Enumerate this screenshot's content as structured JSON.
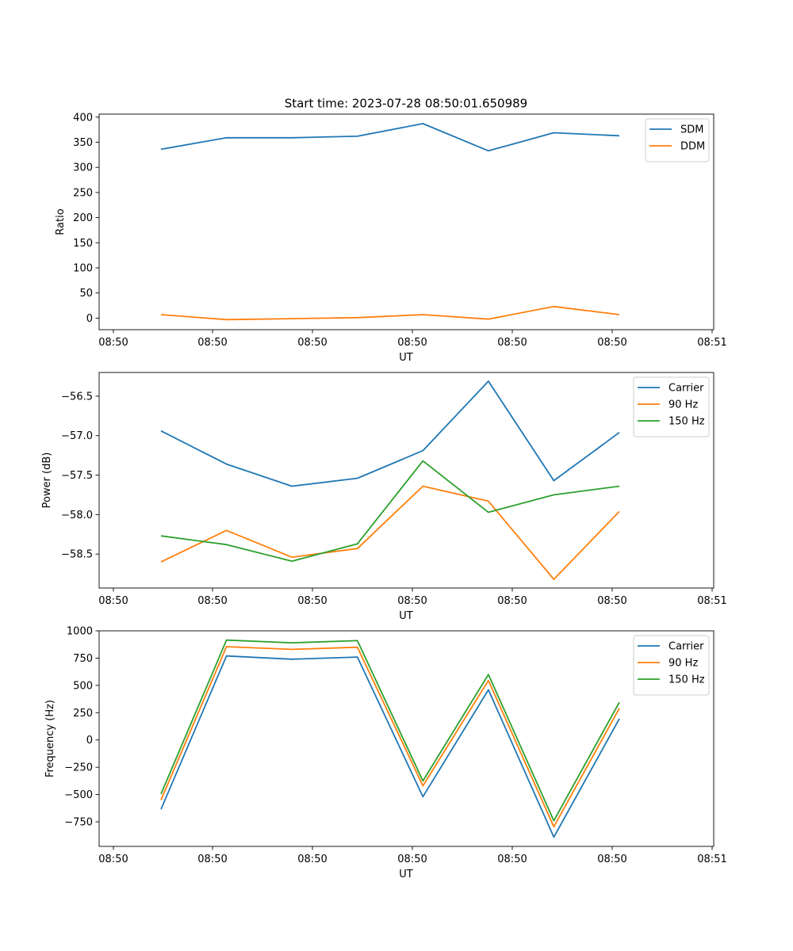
{
  "title": "Start time: 2023-07-28 08:50:01.650989",
  "chart_data": [
    {
      "type": "line",
      "xlabel": "UT",
      "ylabel": "Ratio",
      "x_tick_labels": [
        "08:50",
        "08:50",
        "08:50",
        "08:50",
        "08:50",
        "08:50",
        "08:51"
      ],
      "y_ticks": [
        0,
        50,
        100,
        150,
        200,
        250,
        300,
        350,
        400
      ],
      "y_tick_labels": [
        "0",
        "50",
        "100",
        "150",
        "200",
        "250",
        "300",
        "350",
        "400"
      ],
      "ylim": [
        -23,
        406
      ],
      "legend": "top-right",
      "x_index": [
        1,
        2,
        3,
        4,
        5,
        6,
        7,
        8
      ],
      "series": [
        {
          "name": "SDM",
          "color": "#1f77b4",
          "values": [
            336,
            359,
            359,
            362,
            387,
            333,
            369,
            363
          ]
        },
        {
          "name": "DDM",
          "color": "#ff7f0e",
          "values": [
            7,
            -3,
            -1,
            1,
            7,
            -2,
            23,
            7
          ]
        }
      ]
    },
    {
      "type": "line",
      "xlabel": "UT",
      "ylabel": "Power (dB)",
      "x_tick_labels": [
        "08:50",
        "08:50",
        "08:50",
        "08:50",
        "08:50",
        "08:50",
        "08:51"
      ],
      "y_ticks": [
        -58.5,
        -58.0,
        -57.5,
        -57.0,
        -56.5
      ],
      "y_tick_labels": [
        "−58.5",
        "−58.0",
        "−57.5",
        "−57.0",
        "−56.5"
      ],
      "ylim": [
        -58.93,
        -56.2
      ],
      "legend": "top-right",
      "x_index": [
        1,
        2,
        3,
        4,
        5,
        6,
        7,
        8
      ],
      "series": [
        {
          "name": "Carrier",
          "color": "#1f77b4",
          "values": [
            -56.94,
            -57.36,
            -57.64,
            -57.54,
            -57.19,
            -56.31,
            -57.57,
            -56.96
          ]
        },
        {
          "name": "90 Hz",
          "color": "#ff7f0e",
          "values": [
            -58.6,
            -58.2,
            -58.54,
            -58.43,
            -57.64,
            -57.83,
            -58.82,
            -57.96
          ]
        },
        {
          "name": "150 Hz",
          "color": "#2ca02c",
          "values": [
            -58.27,
            -58.38,
            -58.59,
            -58.37,
            -57.32,
            -57.97,
            -57.75,
            -57.64
          ]
        }
      ]
    },
    {
      "type": "line",
      "xlabel": "UT",
      "ylabel": "Frequency (Hz)",
      "x_tick_labels": [
        "08:50",
        "08:50",
        "08:50",
        "08:50",
        "08:50",
        "08:50",
        "08:51"
      ],
      "y_ticks": [
        -750,
        -500,
        -250,
        0,
        250,
        500,
        750,
        1000
      ],
      "y_tick_labels": [
        "−750",
        "−500",
        "−250",
        "0",
        "250",
        "500",
        "750",
        "1000"
      ],
      "ylim": [
        -975,
        1000
      ],
      "legend": "top-right",
      "x_index": [
        1,
        2,
        3,
        4,
        5,
        6,
        7,
        8
      ],
      "series": [
        {
          "name": "Carrier",
          "color": "#1f77b4",
          "values": [
            -635,
            770,
            740,
            760,
            -520,
            460,
            -890,
            195
          ]
        },
        {
          "name": "90 Hz",
          "color": "#ff7f0e",
          "values": [
            -550,
            855,
            830,
            850,
            -420,
            545,
            -795,
            290
          ]
        },
        {
          "name": "150 Hz",
          "color": "#2ca02c",
          "values": [
            -495,
            915,
            890,
            910,
            -375,
            600,
            -740,
            345
          ]
        }
      ]
    }
  ]
}
